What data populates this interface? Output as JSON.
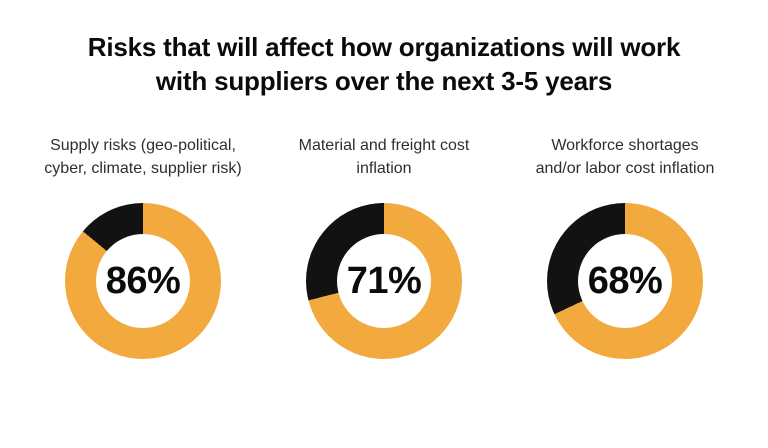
{
  "title": {
    "text": "Risks that will affect how organizations will work with suppliers over the next 3-5 years",
    "lines": [
      "Risks that will affect how organizations will work",
      "with suppliers over the next 3-5 years"
    ]
  },
  "chart_data": {
    "type": "pie",
    "subtype": "donut",
    "title": "Risks that will affect how organizations will work with suppliers over the next 3-5 years",
    "legend": "none",
    "colors": {
      "filled": "#F2A93E",
      "remainder": "#121212",
      "hole": "#ffffff",
      "text": "#0b0b0b"
    },
    "charts": [
      {
        "label": "Supply risks (geo-political, cyber, climate, supplier risk)",
        "label_lines": [
          "Supply risks (geo-political,",
          "cyber, climate, supplier risk)"
        ],
        "value": 86,
        "display": "86%"
      },
      {
        "label": "Material and freight cost inflation",
        "label_lines": [
          "Material and freight cost",
          "inflation"
        ],
        "value": 71,
        "display": "71%"
      },
      {
        "label": "Workforce shortages and/or labor cost inflation",
        "label_lines": [
          "Workforce shortages",
          "and/or labor cost inflation"
        ],
        "value": 68,
        "display": "68%"
      }
    ]
  }
}
